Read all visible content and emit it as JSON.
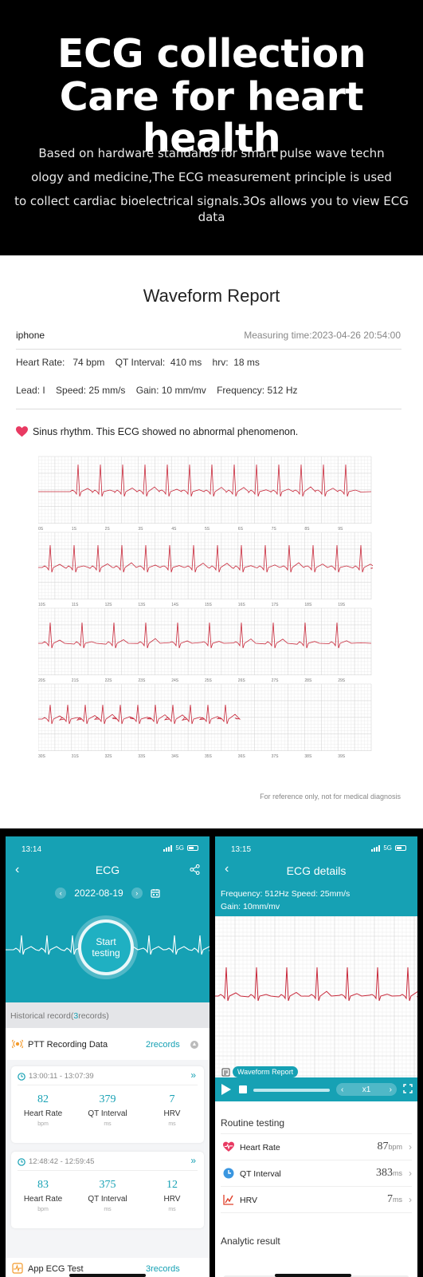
{
  "hero": {
    "title_line1": "ECG collection",
    "title_line2": "Care for heart health",
    "desc_line1": "Based on hardware standards for smart pulse wave techn",
    "desc_line2": "ology and medicine,The ECG measurement principle is used",
    "desc_line3": "to collect cardiac bioelectrical signals.3Os allows you to view ECG data"
  },
  "report": {
    "title": "Waveform Report",
    "device": "iphone",
    "measuring_time": "Measuring time:2023-04-26 20:54:00",
    "params_line1": "Heart Rate:   74 bpm    QT Interval:  410 ms    hrv:  18 ms",
    "params_line2": "Lead: I    Speed: 25 mm/s    Gain: 10 mm/mv    Frequency: 512 Hz",
    "verdict": "Sinus rhythm. This ECG showed no abnormal phenomenon.",
    "disclaimer": "For reference only, not for medical diagnosis",
    "rows": [
      {
        "ticks": [
          "0S",
          "1S",
          "2S",
          "3S",
          "4S",
          "5S",
          "6S",
          "7S",
          "8S",
          "9S"
        ]
      },
      {
        "ticks": [
          "10S",
          "11S",
          "12S",
          "13S",
          "14S",
          "15S",
          "16S",
          "17S",
          "18S",
          "19S"
        ]
      },
      {
        "ticks": [
          "20S",
          "21S",
          "22S",
          "23S",
          "24S",
          "25S",
          "26S",
          "27S",
          "28S",
          "29S"
        ]
      },
      {
        "ticks": [
          "30S",
          "31S",
          "32S",
          "33S",
          "34S",
          "35S",
          "36S",
          "37S",
          "38S",
          "39S"
        ]
      }
    ],
    "colors": {
      "grid_minor": "#ececec",
      "grid_major": "#d6d6d6",
      "trace": "#c8283a"
    }
  },
  "phone1": {
    "status_time": "13:14",
    "network": "5G",
    "title": "ECG",
    "date": "2022-08-19",
    "start_line1": "Start",
    "start_line2": "testing",
    "history_prefix": "Historical record(",
    "history_count": "3",
    "history_suffix": "records)",
    "ptt_label": "PTT Recording Data",
    "ptt_records": "2records",
    "cards": [
      {
        "range": "13:00:11 - 13:07:39",
        "hr": "82",
        "qt": "379",
        "hrv": "7"
      },
      {
        "range": "12:48:42 - 12:59:45",
        "hr": "83",
        "qt": "375",
        "hrv": "12"
      }
    ],
    "labels": {
      "hr": "Heart Rate",
      "qt": "QT Interval",
      "hrv": "HRV",
      "bpm": "bpm",
      "ms": "ms"
    },
    "app_label": "App ECG Test",
    "app_records": "3records",
    "accent": "#16a1b4"
  },
  "phone2": {
    "status_time": "13:15",
    "network": "5G",
    "title": "ECG details",
    "freq_speed": "Frequency: 512Hz     Speed: 25mm/s",
    "gain": "Gain: 10mm/mv",
    "badge": "Waveform Report",
    "speed": "x1",
    "routine": "Routine testing",
    "metrics": [
      {
        "name": "Heart Rate",
        "value": "87",
        "unit": "bpm",
        "icon": "heart-icon"
      },
      {
        "name": "QT Interval",
        "value": "383",
        "unit": "ms",
        "icon": "clock-icon"
      },
      {
        "name": "HRV",
        "value": "7",
        "unit": "ms",
        "icon": "trend-icon"
      }
    ],
    "analytic": "Analytic result"
  }
}
